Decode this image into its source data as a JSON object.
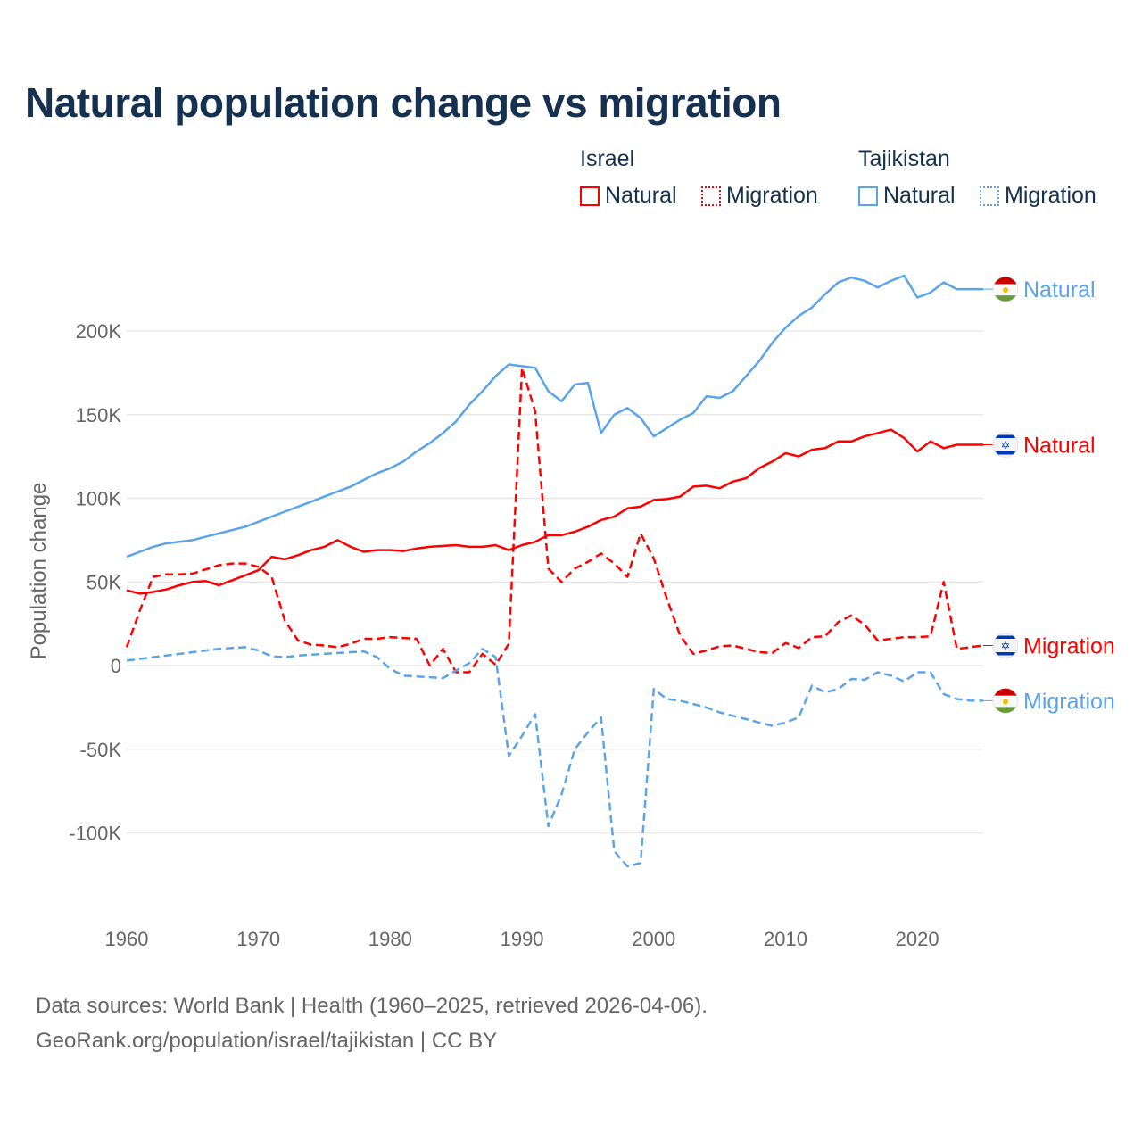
{
  "title": "Natural population change vs migration",
  "legend": {
    "groups": [
      {
        "name": "Israel",
        "items": [
          "Natural",
          "Migration"
        ]
      },
      {
        "name": "Tajikistan",
        "items": [
          "Natural",
          "Migration"
        ]
      }
    ]
  },
  "footer": {
    "line1": "Data sources: World Bank | Health (1960–2025, retrieved 2026-04-06).",
    "line2": "GeoRank.org/population/israel/tajikistan | CC BY"
  },
  "colors": {
    "israel": "#ff0000",
    "tajikistan": "#5ba4ea",
    "grid": "#e8e8e8",
    "text": "#16304f"
  },
  "chart_data": {
    "type": "line",
    "title": "Natural population change vs migration",
    "xlabel": "",
    "ylabel": "Population change",
    "xlim": [
      1960,
      2025
    ],
    "ylim": [
      -140000,
      240000
    ],
    "grid": true,
    "x_ticks": [
      1960,
      1970,
      1980,
      1990,
      2000,
      2010,
      2020
    ],
    "y_ticks": [
      -100000,
      -50000,
      0,
      50000,
      100000,
      150000,
      200000
    ],
    "y_tick_labels": [
      "-100K",
      "-50K",
      "0",
      "50K",
      "100K",
      "150K",
      "200K"
    ],
    "legend_placement": "top-right",
    "x_start": 1960,
    "series": [
      {
        "name": "Tajikistan Natural",
        "country": "tajikistan",
        "kind": "natural",
        "end_label": "Natural",
        "values_k": [
          65,
          68,
          71,
          73,
          74,
          75,
          77,
          79,
          81,
          83,
          86,
          89,
          92,
          95,
          98,
          101,
          104,
          107,
          111,
          115,
          118,
          122,
          128,
          133,
          139,
          146,
          156,
          164,
          173,
          180,
          179,
          178,
          164,
          158,
          168,
          169,
          139,
          150,
          154,
          148,
          137,
          142,
          147,
          151,
          161,
          160,
          164,
          173,
          182,
          193,
          202,
          209,
          214,
          222,
          229,
          232,
          230,
          226,
          230,
          233,
          220,
          223,
          229,
          225,
          225,
          225
        ]
      },
      {
        "name": "Israel Natural",
        "country": "israel",
        "kind": "natural",
        "end_label": "Natural",
        "values_k": [
          45,
          43,
          44,
          45.5,
          48,
          50,
          50.5,
          48,
          51,
          54,
          57,
          65,
          63.5,
          66,
          69,
          71,
          75,
          71,
          68,
          69,
          69,
          68.5,
          70,
          71,
          71.5,
          72,
          71,
          71,
          72,
          69,
          72,
          74,
          78,
          78,
          80,
          83,
          87,
          89,
          94,
          95,
          99,
          99.5,
          101,
          107,
          107.5,
          106,
          110,
          112,
          118,
          122,
          127,
          125,
          129,
          130,
          134,
          134,
          137,
          139,
          141,
          136,
          128,
          134,
          130,
          132,
          132,
          132
        ]
      },
      {
        "name": "Israel Migration",
        "country": "israel",
        "kind": "migration",
        "end_label": "Migration",
        "values_k": [
          11,
          33,
          53,
          54.5,
          54.5,
          55,
          57.5,
          60,
          61,
          61,
          59,
          53,
          27,
          15,
          12.5,
          12,
          11,
          13,
          16,
          16,
          17,
          16.5,
          16,
          0,
          10,
          -4,
          -4,
          7,
          0.5,
          13,
          178,
          152,
          58,
          50,
          58,
          62,
          67,
          61,
          53,
          79,
          64,
          40,
          18,
          7,
          9,
          11.5,
          12,
          10,
          8,
          7.5,
          13.5,
          10.5,
          17,
          17.5,
          26,
          30,
          24.5,
          15,
          16,
          17,
          17,
          17.5,
          50,
          10,
          11,
          12
        ]
      },
      {
        "name": "Tajikistan Migration",
        "country": "tajikistan",
        "kind": "migration",
        "end_label": "Migration",
        "values_k": [
          3,
          4,
          5,
          6,
          7,
          8,
          9,
          10,
          10.5,
          11,
          9,
          5.5,
          5,
          6,
          6.5,
          7,
          7.5,
          8,
          8.5,
          5,
          -2,
          -6,
          -6.5,
          -7,
          -7.5,
          -3,
          1.5,
          10,
          5,
          -54,
          -42,
          -29,
          -96,
          -77,
          -50,
          -40,
          -31,
          -111,
          -120,
          -118,
          -14,
          -20,
          -21,
          -23,
          -25,
          -28,
          -30,
          -32,
          -34,
          -36,
          -34,
          -31,
          -12,
          -16,
          -14,
          -8,
          -8.5,
          -4,
          -6,
          -9.5,
          -4,
          -4,
          -17,
          -20,
          -21,
          -21
        ]
      }
    ]
  }
}
